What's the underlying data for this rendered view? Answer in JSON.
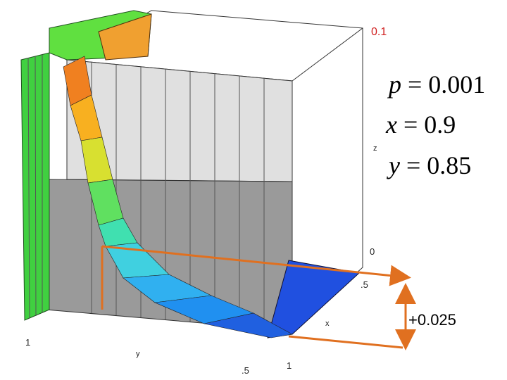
{
  "axis_labels": {
    "z_max": "0.1",
    "z_name": "z",
    "z_min": "0",
    "x_mid": ".5",
    "x_name": "x",
    "y_start": "1",
    "y_name": "y",
    "y_mid": ".5",
    "x_end": "1"
  },
  "equations": [
    {
      "variable": "p",
      "value": "= 0.001"
    },
    {
      "variable": "x",
      "value": "= 0.9"
    },
    {
      "variable": "y",
      "value": "= 0.85"
    }
  ],
  "annotation": "+0.025"
}
